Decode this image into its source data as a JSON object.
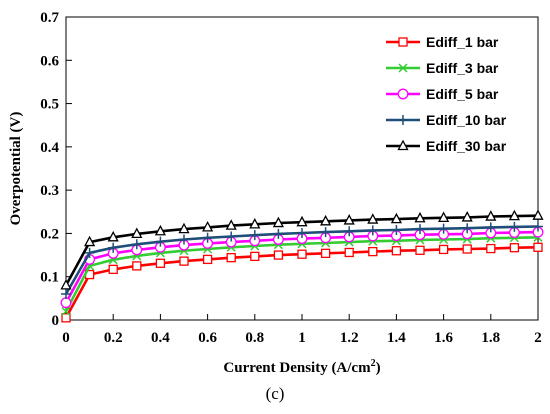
{
  "caption": "(c)",
  "chart_data": {
    "type": "line",
    "xlabel": "Current Density (A/cm",
    "xlabel_sup": "2",
    "xlabel_end": ")",
    "ylabel": "Overpotential (V)",
    "xlim": [
      0,
      2
    ],
    "ylim": [
      0,
      0.7
    ],
    "xticks": [
      "0",
      "0.2",
      "0.4",
      "0.6",
      "0.8",
      "1",
      "1.2",
      "1.4",
      "1.6",
      "1.8",
      "2"
    ],
    "yticks": [
      "0",
      "0.1",
      "0.2",
      "0.3",
      "0.4",
      "0.5",
      "0.6",
      "0.7"
    ],
    "grid": false,
    "legend_position": "top-right",
    "x": [
      0,
      0.1,
      0.2,
      0.3,
      0.4,
      0.5,
      0.6,
      0.7,
      0.8,
      0.9,
      1.0,
      1.1,
      1.2,
      1.3,
      1.4,
      1.5,
      1.6,
      1.7,
      1.8,
      1.9,
      2.0
    ],
    "series": [
      {
        "name": "Ediff_1 bar",
        "color": "#ff0000",
        "marker": "square",
        "values": [
          0.005,
          0.105,
          0.117,
          0.125,
          0.131,
          0.136,
          0.14,
          0.144,
          0.147,
          0.15,
          0.152,
          0.154,
          0.156,
          0.158,
          0.16,
          0.161,
          0.163,
          0.164,
          0.165,
          0.167,
          0.168
        ]
      },
      {
        "name": "Ediff_3 bar",
        "color": "#33cc33",
        "marker": "x",
        "values": [
          0.02,
          0.125,
          0.139,
          0.148,
          0.155,
          0.16,
          0.164,
          0.168,
          0.171,
          0.174,
          0.176,
          0.178,
          0.18,
          0.182,
          0.183,
          0.185,
          0.186,
          0.187,
          0.189,
          0.19,
          0.191
        ]
      },
      {
        "name": "Ediff_5 bar",
        "color": "#ff00ff",
        "marker": "circle",
        "values": [
          0.04,
          0.14,
          0.154,
          0.162,
          0.168,
          0.173,
          0.177,
          0.18,
          0.183,
          0.186,
          0.188,
          0.19,
          0.192,
          0.194,
          0.195,
          0.197,
          0.198,
          0.199,
          0.201,
          0.202,
          0.203
        ]
      },
      {
        "name": "Ediff_10 bar",
        "color": "#1f4e79",
        "marker": "plus",
        "values": [
          0.06,
          0.155,
          0.167,
          0.175,
          0.181,
          0.186,
          0.19,
          0.193,
          0.196,
          0.199,
          0.201,
          0.203,
          0.205,
          0.207,
          0.208,
          0.21,
          0.211,
          0.212,
          0.214,
          0.215,
          0.216
        ]
      },
      {
        "name": "Ediff_30 bar",
        "color": "#000000",
        "marker": "triangle",
        "values": [
          0.08,
          0.18,
          0.191,
          0.199,
          0.205,
          0.21,
          0.214,
          0.218,
          0.221,
          0.224,
          0.226,
          0.228,
          0.23,
          0.232,
          0.233,
          0.235,
          0.236,
          0.237,
          0.239,
          0.24,
          0.241
        ]
      }
    ]
  }
}
